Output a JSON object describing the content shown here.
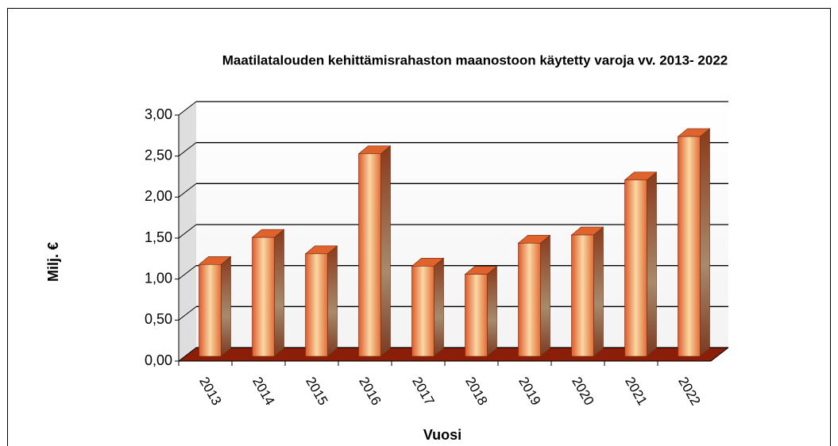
{
  "chart_data": {
    "type": "bar3d",
    "title": "Maatilatalouden kehittämisrahaston maanostoon käytetty varoja vv. 2013- 2022",
    "x_label": "Vuosi",
    "y_label": "Milj. €",
    "categories": [
      "2013",
      "2014",
      "2015",
      "2016",
      "2017",
      "2018",
      "2019",
      "2020",
      "2021",
      "2022"
    ],
    "values": [
      1.12,
      1.45,
      1.25,
      2.47,
      1.1,
      1.0,
      1.38,
      1.48,
      2.15,
      2.68
    ],
    "color": "#e0622c",
    "ylim": [
      0,
      3
    ],
    "yticks": [
      {
        "value": 0,
        "label": "0,00"
      },
      {
        "value": 0.5,
        "label": "0,50"
      },
      {
        "value": 1,
        "label": "1,00"
      },
      {
        "value": 1.5,
        "label": "1,50"
      },
      {
        "value": 2,
        "label": "2,00"
      },
      {
        "value": 2.5,
        "label": "2,50"
      },
      {
        "value": 3,
        "label": "3,00"
      }
    ],
    "grid": true
  }
}
